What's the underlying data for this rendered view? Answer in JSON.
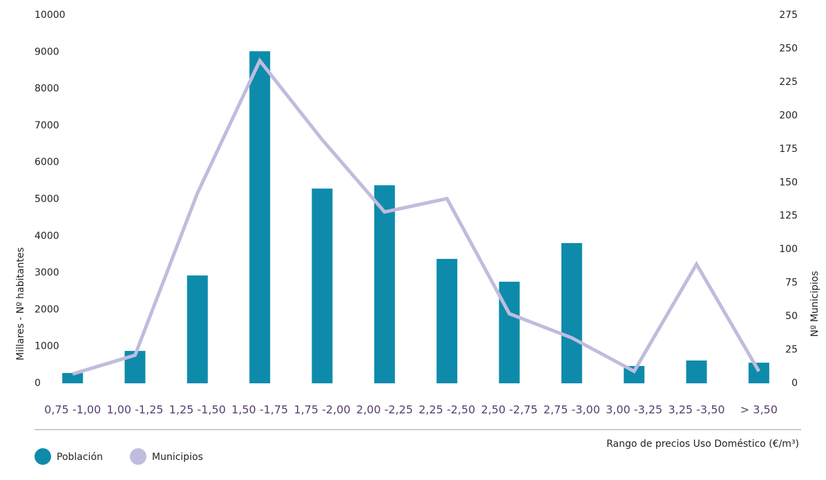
{
  "chart_data": {
    "type": "bar_line",
    "x_label": "Rango de precios Uso Doméstico (€/m³)",
    "y_label": "Millares - Nº habitantes",
    "y2_label": "Nº Municipios",
    "categories": [
      "0,75 -1,00",
      "1,00 -1,25",
      "1,25 -1,50",
      "1,50 -1,75",
      "1,75 -2,00",
      "2,00 -2,25",
      "2,25 -2,50",
      "2,50 -2,75",
      "2,75 -3,00",
      "3,00 -3,25",
      "3,25 -3,50",
      "> 3,50"
    ],
    "series": [
      {
        "name": "Población",
        "type": "bar",
        "color": "#0e8bab",
        "values": [
          280,
          880,
          2930,
          9020,
          5290,
          5380,
          3380,
          2760,
          3810,
          470,
          620,
          560
        ]
      },
      {
        "name": "Municipios",
        "type": "line",
        "axis": "y2",
        "color": "#c0bcdd",
        "values": [
          7,
          21,
          142,
          241,
          182,
          128,
          138,
          52,
          34,
          9,
          89,
          9
        ]
      }
    ],
    "ylim": [
      0,
      10000
    ],
    "yticks": [
      0,
      1000,
      2000,
      3000,
      4000,
      5000,
      6000,
      7000,
      8000,
      9000,
      10000
    ],
    "y2lim": [
      0,
      275
    ],
    "y2ticks": [
      0,
      25,
      50,
      75,
      100,
      125,
      150,
      175,
      200,
      225,
      250,
      275
    ],
    "grid": false
  }
}
